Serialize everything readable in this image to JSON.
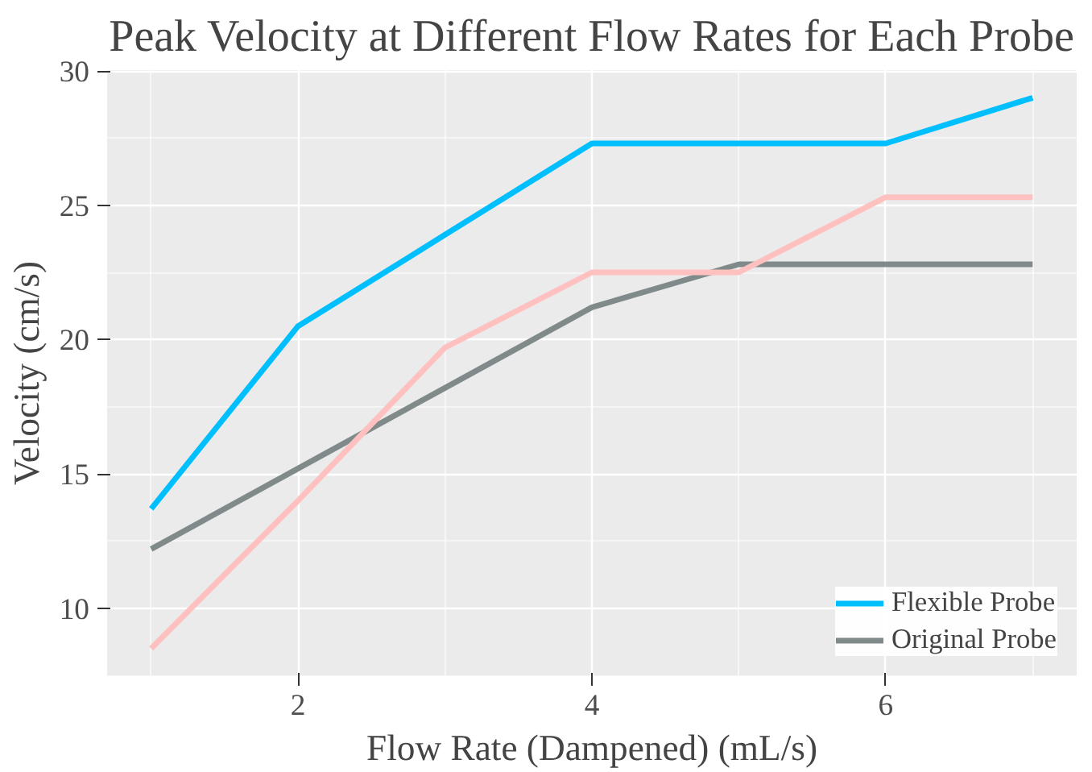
{
  "chart_data": {
    "type": "line",
    "title": "Peak Velocity at Different Flow Rates for Each Probe",
    "xlabel": "Flow Rate (Dampened) (mL/s)",
    "ylabel": "Velocity (cm/s)",
    "x": [
      1,
      2,
      3,
      4,
      5,
      6,
      7
    ],
    "series": [
      {
        "name": "Flexible Probe",
        "color": "#00bfff",
        "values": [
          13.7,
          20.5,
          23.9,
          27.3,
          27.3,
          27.3,
          29.0
        ]
      },
      {
        "name": "Original Probe",
        "color": "#808a8a",
        "values": [
          12.2,
          15.2,
          18.2,
          21.2,
          22.8,
          22.8,
          22.8
        ]
      },
      {
        "color": "#ffc0c0",
        "values": [
          8.5,
          14.0,
          19.7,
          22.5,
          22.5,
          25.3,
          25.3
        ]
      }
    ],
    "xlim": [
      0.7,
      7.3
    ],
    "ylim": [
      7.47,
      30.03
    ],
    "xticks": [
      2,
      4,
      6
    ],
    "yticks": [
      10,
      15,
      20,
      25,
      30
    ],
    "grid": true,
    "legend": "bottom right",
    "line_style": "solid"
  }
}
